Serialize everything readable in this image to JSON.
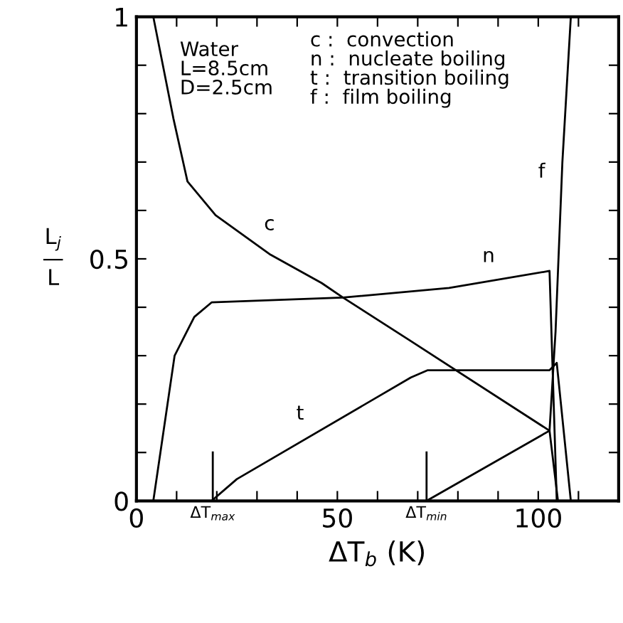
{
  "chart_data": {
    "type": "line",
    "xlabel": "ΔT$_{b}$ (K)",
    "ylabel": "L$_{j}$\n—\nL",
    "xlim": [
      0,
      120
    ],
    "ylim": [
      0,
      1
    ],
    "xticks": [
      0,
      {
        "value": 10,
        "label": null
      },
      {
        "value": 20,
        "label": null
      },
      {
        "value": 30,
        "label": null
      },
      {
        "value": 40,
        "label": null
      },
      50,
      {
        "value": 60,
        "label": null
      },
      {
        "value": 70,
        "label": null
      },
      {
        "value": 80,
        "label": null
      },
      {
        "value": 90,
        "label": null
      },
      100,
      {
        "value": 110,
        "label": null
      }
    ],
    "yticks": [
      0,
      {
        "value": 0.1,
        "label": null
      },
      {
        "value": 0.2,
        "label": null
      },
      {
        "value": 0.3,
        "label": null
      },
      {
        "value": 0.4,
        "label": null
      },
      0.5,
      {
        "value": 0.6,
        "label": null
      },
      {
        "value": 0.7,
        "label": null
      },
      {
        "value": 0.8,
        "label": null
      },
      {
        "value": 0.9,
        "label": null
      },
      1
    ],
    "grid": false,
    "marker": "none",
    "line_style": "solid",
    "series": [
      {
        "name": "c",
        "color": "#000000",
        "x": [
          4.2,
          9.2,
          12.7,
          19.7,
          33.1,
          46.1,
          51.4,
          68.3,
          102.8,
          104.9
        ],
        "values": [
          1.0,
          0.79,
          0.66,
          0.59,
          0.51,
          0.45,
          0.42,
          0.33,
          0.145,
          0
        ]
      },
      {
        "name": "n",
        "color": "#000000",
        "x": [
          4.2,
          9.5,
          14.4,
          18.7,
          51.4,
          77.8,
          102.8,
          104.6
        ],
        "values": [
          0,
          0.3,
          0.38,
          0.41,
          0.42,
          0.44,
          0.475,
          0
        ]
      },
      {
        "name": "t",
        "color": "#000000",
        "x": [
          18.7,
          25,
          68.3,
          72.5,
          102.8,
          104.6,
          108.1
        ],
        "values": [
          0,
          0.045,
          0.255,
          0.27,
          0.27,
          0.285,
          0
        ]
      },
      {
        "name": "f",
        "color": "#000000",
        "x": [
          72.2,
          102.8,
          104.3,
          106,
          108.1
        ],
        "values": [
          0,
          0.145,
          0.35,
          0.7,
          1.0
        ]
      }
    ],
    "ref_lines": [
      {
        "axis": "x",
        "value": 19,
        "label": "ΔT$_{max}$"
      },
      {
        "axis": "x",
        "value": 72.2,
        "label": "ΔT$_{min}$"
      }
    ],
    "annotations": [
      "Water\nL=8.5cm\nD=2.5cm",
      "c :  convection\nn :  nucleate boiling\nt :  transition boiling\nf :  film boiling"
    ]
  }
}
